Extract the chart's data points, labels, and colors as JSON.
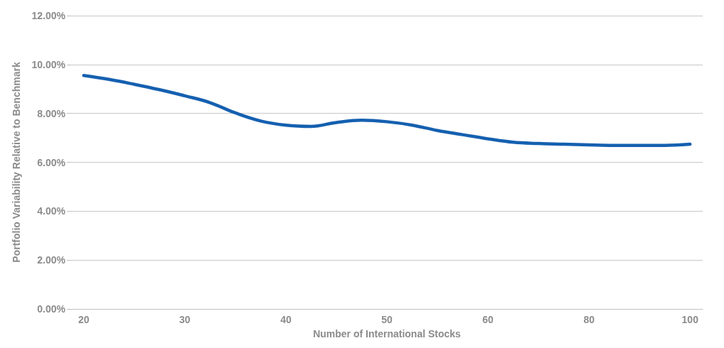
{
  "chart_data": {
    "type": "line",
    "xlabel": "Number of International Stocks",
    "ylabel": "Portfolio Variability Relative to Benchmark",
    "categories": [
      "20",
      null,
      null,
      null,
      "30",
      null,
      null,
      null,
      "40",
      null,
      null,
      null,
      "50",
      null,
      null,
      null,
      "60",
      null,
      null,
      null,
      "80",
      null,
      null,
      null,
      "100"
    ],
    "series": [
      {
        "color": "#1560b0",
        "values": [
          9.55,
          9.39,
          9.19,
          8.97,
          8.72,
          8.44,
          8.02,
          7.69,
          7.52,
          7.47,
          7.63,
          7.72,
          7.66,
          7.52,
          7.3,
          7.13,
          6.96,
          6.82,
          6.77,
          6.74,
          6.71,
          6.69,
          6.69,
          6.69,
          6.74
        ]
      }
    ],
    "ylim": [
      0,
      12
    ],
    "yticks": [
      {
        "value": 0,
        "label": "0.00%"
      },
      {
        "value": 2,
        "label": "2.00%"
      },
      {
        "value": 4,
        "label": "4.00%"
      },
      {
        "value": 6,
        "label": "6.00%"
      },
      {
        "value": 8,
        "label": "8.00%"
      },
      {
        "value": 10,
        "label": "10.00%"
      },
      {
        "value": 12,
        "label": "12.00%"
      }
    ],
    "grid": "y",
    "marker": "none",
    "line_style": "solid"
  }
}
